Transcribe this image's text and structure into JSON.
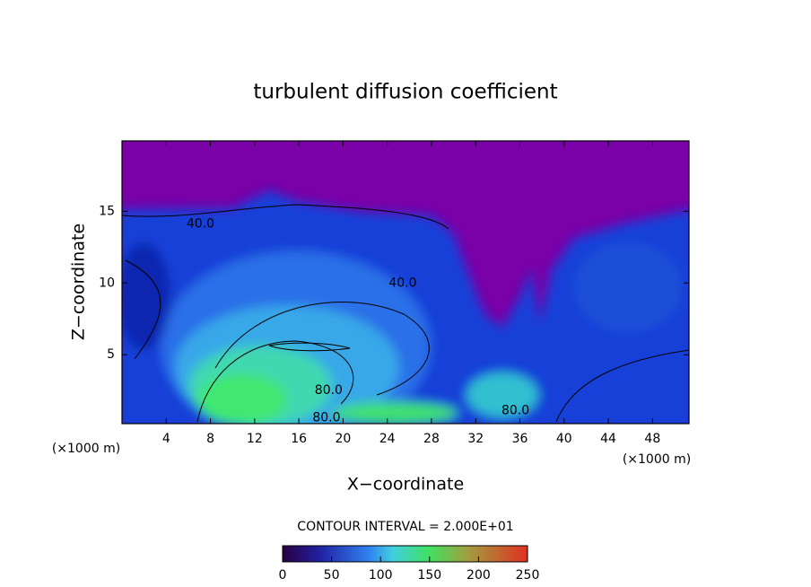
{
  "chart_data": {
    "type": "contour",
    "title": "turbulent diffusion coefficient",
    "x_label": "X−coordinate",
    "y_label": "Z−coordinate",
    "x_unit_label": "(×1000 m)",
    "xlim": [
      0,
      51.3
    ],
    "ylim": [
      0.2,
      19.9
    ],
    "xticks": [
      4,
      8,
      12,
      16,
      20,
      24,
      28,
      32,
      36,
      40,
      44,
      48
    ],
    "yticks": [
      5,
      10,
      15
    ],
    "contour_labels": [
      {
        "x": 7.1,
        "y": 14.1,
        "value": 40,
        "label": "40.0"
      },
      {
        "x": 25.4,
        "y": 10,
        "value": 40,
        "label": "40.0"
      },
      {
        "x": 18.7,
        "y": 2.5,
        "value": 80,
        "label": "80.0"
      },
      {
        "x": 18.5,
        "y": 0.6,
        "value": 80,
        "label": "80.0"
      },
      {
        "x": 35.6,
        "y": 1.1,
        "value": 80,
        "label": "80.0"
      }
    ],
    "contour_interval": "CONTOUR INTERVAL = 2.000E+01",
    "colorbar_lim": [
      0,
      250
    ],
    "colorbar_ticks": [
      0,
      50,
      100,
      150,
      200,
      250
    ]
  }
}
